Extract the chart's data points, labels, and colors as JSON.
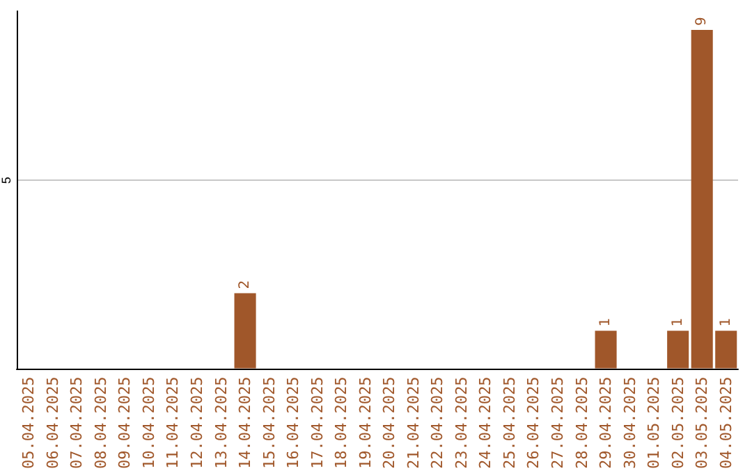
{
  "chart_data": {
    "type": "bar",
    "categories": [
      "05.04.2025",
      "06.04.2025",
      "07.04.2025",
      "08.04.2025",
      "09.04.2025",
      "10.04.2025",
      "11.04.2025",
      "12.04.2025",
      "13.04.2025",
      "14.04.2025",
      "15.04.2025",
      "16.04.2025",
      "17.04.2025",
      "18.04.2025",
      "19.04.2025",
      "20.04.2025",
      "21.04.2025",
      "22.04.2025",
      "23.04.2025",
      "24.04.2025",
      "25.04.2025",
      "26.04.2025",
      "27.04.2025",
      "28.04.2025",
      "29.04.2025",
      "30.04.2025",
      "01.05.2025",
      "02.05.2025",
      "03.05.2025",
      "04.05.2025"
    ],
    "values": [
      0,
      0,
      0,
      0,
      0,
      0,
      0,
      0,
      0,
      2,
      0,
      0,
      0,
      0,
      0,
      0,
      0,
      0,
      0,
      0,
      0,
      0,
      0,
      0,
      1,
      0,
      0,
      1,
      9,
      1
    ],
    "value_labels": [
      null,
      null,
      null,
      null,
      null,
      null,
      null,
      null,
      null,
      "2",
      null,
      null,
      null,
      null,
      null,
      null,
      null,
      null,
      null,
      null,
      null,
      null,
      null,
      null,
      "1",
      null,
      null,
      "1",
      "9",
      "1"
    ],
    "color": "#a0572a",
    "ylim": [
      0,
      9.5
    ],
    "yticks": [
      5
    ],
    "grid": "y"
  }
}
